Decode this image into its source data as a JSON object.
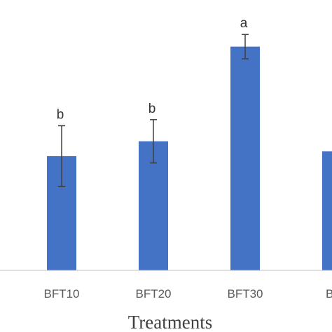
{
  "chart_data": {
    "type": "bar",
    "xlabel": "Treatments",
    "categories": [
      "BFT10",
      "BFT20",
      "BFT30",
      "BFT"
    ],
    "values": [
      169,
      191,
      331,
      176
    ],
    "errors": [
      45,
      32,
      18,
      null
    ],
    "significance": [
      "b",
      "b",
      "a",
      ""
    ],
    "ylim": [
      0,
      400
    ],
    "grid": false,
    "colors": {
      "bar": "#4472C4",
      "error": "#404040",
      "axis": "#BFBFBF"
    }
  }
}
